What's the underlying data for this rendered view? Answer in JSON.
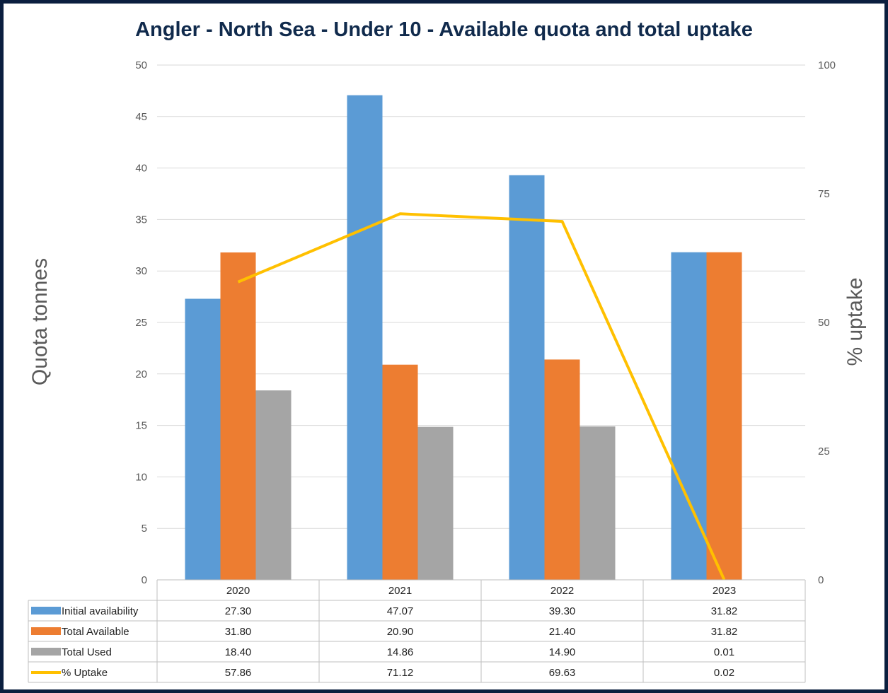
{
  "chart_data": {
    "type": "bar",
    "title": "Angler - North Sea - Under 10 - Available quota and total uptake",
    "ylabel": "Quota tonnes",
    "y2label": "% uptake",
    "ylim": [
      0,
      50
    ],
    "y2lim": [
      0,
      100
    ],
    "yticks": [
      "0",
      "5",
      "10",
      "15",
      "20",
      "25",
      "30",
      "35",
      "40",
      "45",
      "50"
    ],
    "y2ticks": [
      "0",
      "25",
      "50",
      "75",
      "100"
    ],
    "categories": [
      "2020",
      "2021",
      "2022",
      "2023"
    ],
    "series": [
      {
        "name": "Initial availability",
        "type": "bar",
        "axis": "left",
        "color": "#5b9bd5",
        "values": [
          27.3,
          47.07,
          39.3,
          31.82
        ],
        "labels": [
          "27.30",
          "47.07",
          "39.30",
          "31.82"
        ]
      },
      {
        "name": "Total Available",
        "type": "bar",
        "axis": "left",
        "color": "#ed7d31",
        "values": [
          31.8,
          20.9,
          21.4,
          31.82
        ],
        "labels": [
          "31.80",
          "20.90",
          "21.40",
          "31.82"
        ]
      },
      {
        "name": "Total Used",
        "type": "bar",
        "axis": "left",
        "color": "#a5a5a5",
        "values": [
          18.4,
          14.86,
          14.9,
          0.01
        ],
        "labels": [
          "18.40",
          "14.86",
          "14.90",
          "0.01"
        ]
      },
      {
        "name": "% Uptake",
        "type": "line",
        "axis": "right",
        "color": "#ffc000",
        "values": [
          57.86,
          71.12,
          69.63,
          0.02
        ],
        "labels": [
          "57.86",
          "71.12",
          "69.63",
          "0.02"
        ]
      }
    ],
    "grid": true,
    "legend": "data-table"
  },
  "colors": {
    "frame": "#0b1f3f",
    "title": "#102a4c",
    "grid": "#d9d9d9",
    "text": "#595959"
  }
}
